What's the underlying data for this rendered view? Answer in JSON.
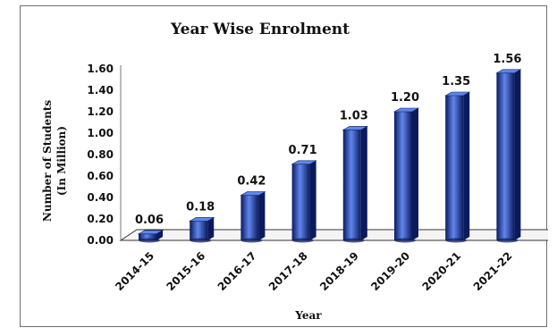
{
  "chart_data": {
    "type": "bar",
    "title": "Year Wise Enrolment",
    "xlabel": "Year",
    "ylabel": "Number of Students (In Million)",
    "ylabel_lines": [
      "Number of Students",
      "(In Million)"
    ],
    "categories": [
      "2014-15",
      "2015-16",
      "2016-17",
      "2017-18",
      "2018-19",
      "2019-20",
      "2020-21",
      "2021-22"
    ],
    "values": [
      0.06,
      0.18,
      0.42,
      0.71,
      1.03,
      1.2,
      1.35,
      1.56
    ],
    "data_labels": [
      "0.06",
      "0.18",
      "0.42",
      "0.71",
      "1.03",
      "1.20",
      "1.35",
      "1.56"
    ],
    "ylim": [
      0,
      1.6
    ],
    "yticks": [
      "0.00",
      "0.20",
      "0.40",
      "0.60",
      "0.80",
      "1.00",
      "1.20",
      "1.40",
      "1.60"
    ],
    "grid": false,
    "legend": "none",
    "bar_color": "#1f3fae",
    "bar_highlight": "#5f86ee",
    "bar_shadow": "#0b1a5c"
  }
}
